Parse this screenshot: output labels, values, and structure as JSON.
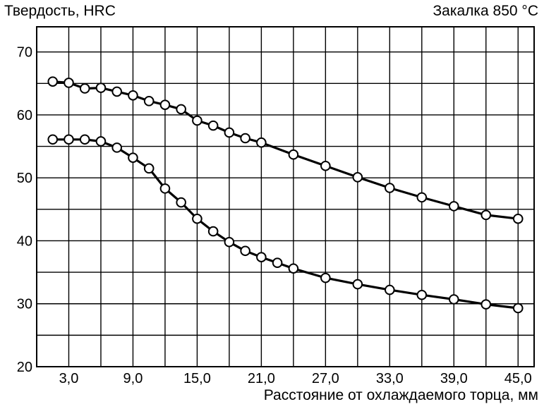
{
  "chart_data": {
    "type": "line",
    "ylabel": "Твердость, HRC",
    "annotation": "Закалка 850 °C",
    "xlabel": "Расстояние от охлаждаемого торца, мм",
    "xlim": [
      0,
      46.5
    ],
    "ylim": [
      20,
      74
    ],
    "xticks": [
      3,
      9,
      15,
      21,
      27,
      33,
      39,
      45
    ],
    "xtick_labels": [
      "3,0",
      "9,0",
      "15,0",
      "21,0",
      "27,0",
      "33,0",
      "39,0",
      "45,0"
    ],
    "yticks": [
      20,
      30,
      40,
      50,
      60,
      70
    ],
    "ytick_labels": [
      "20",
      "30",
      "40",
      "50",
      "60",
      "70"
    ],
    "grid": true,
    "line_color": "#000000",
    "series": [
      {
        "x": [
          1.5,
          3.0,
          4.5,
          6.0,
          7.5,
          9.0,
          10.5,
          12.0,
          13.5,
          15.0,
          16.5,
          18.0,
          19.5,
          21.0,
          24.0,
          27.0,
          30.0,
          33.0,
          36.0,
          39.0,
          42.0,
          45.0
        ],
        "y": [
          65.3,
          65.1,
          64.2,
          64.3,
          63.7,
          63.1,
          62.2,
          61.6,
          60.9,
          59.1,
          58.3,
          57.2,
          56.3,
          55.6,
          53.7,
          51.9,
          50.1,
          48.4,
          46.9,
          45.5,
          44.1,
          43.5
        ]
      },
      {
        "x": [
          1.5,
          3.0,
          4.5,
          6.0,
          7.5,
          9.0,
          10.5,
          12.0,
          13.5,
          15.0,
          16.5,
          18.0,
          19.5,
          21.0,
          22.5,
          24.0,
          27.0,
          30.0,
          33.0,
          36.0,
          39.0,
          42.0,
          45.0
        ],
        "y": [
          56.1,
          56.1,
          56.1,
          55.8,
          54.8,
          53.2,
          51.5,
          48.3,
          46.1,
          43.5,
          41.5,
          39.8,
          38.4,
          37.4,
          36.5,
          35.6,
          34.1,
          33.1,
          32.2,
          31.4,
          30.7,
          29.9,
          29.3
        ]
      }
    ]
  }
}
